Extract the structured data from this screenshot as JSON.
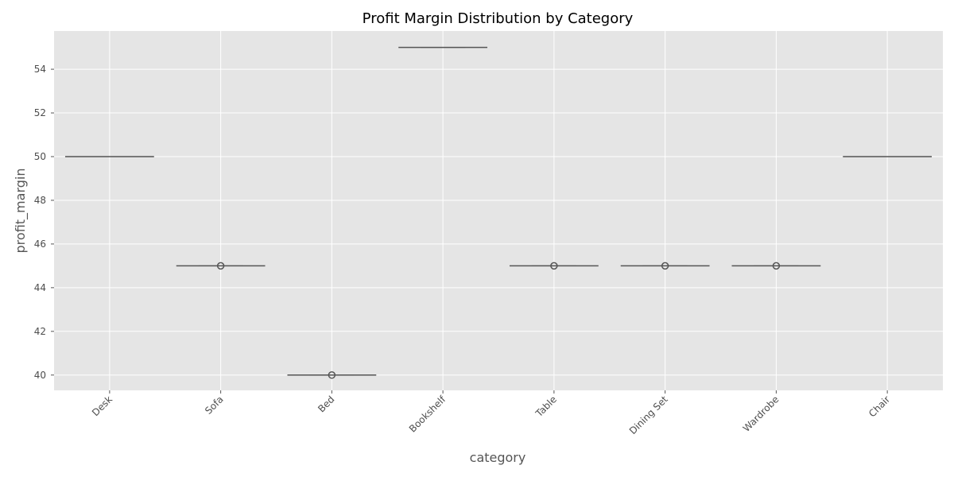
{
  "chart_data": {
    "type": "box",
    "title": "Profit Margin Distribution by Category",
    "xlabel": "category",
    "ylabel": "profit_margin",
    "categories": [
      "Desk",
      "Sofa",
      "Bed",
      "Bookshelf",
      "Table",
      "Dining Set",
      "Wardrobe",
      "Chair"
    ],
    "values": [
      50,
      45,
      40,
      55,
      45,
      45,
      45,
      50
    ],
    "outliers": [
      [],
      [
        45
      ],
      [
        40
      ],
      [],
      [
        45
      ],
      [
        45
      ],
      [
        45
      ],
      []
    ],
    "ylim": [
      39.3,
      55.75
    ],
    "yticks": [
      40,
      42,
      44,
      46,
      48,
      50,
      52,
      54
    ],
    "grid": true,
    "colors": {
      "plot_background": "#e5e5e5",
      "grid": "#ffffff",
      "box_line": "#555555",
      "tick_text": "#4d4d4d"
    }
  }
}
